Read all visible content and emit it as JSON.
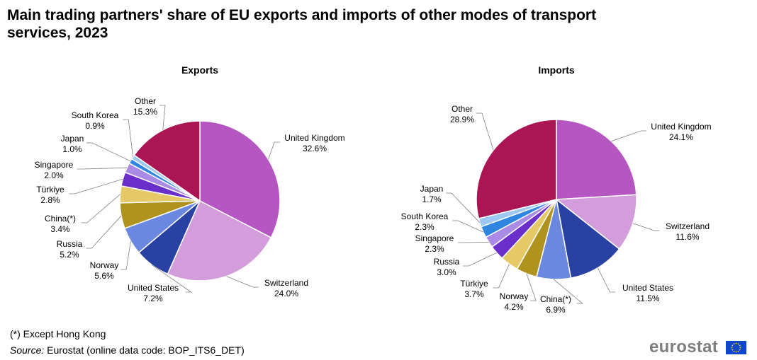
{
  "title": "Main trading partners' share of EU exports and imports of other modes of transport services, 2023",
  "footnote": "(*) Except Hong Kong",
  "source": {
    "label": "Source:",
    "text": "Eurostat (online data code: BOP_ITS6_DET)"
  },
  "logo": {
    "text": "eurostat",
    "flag_icon": "eu-flag-icon"
  },
  "chart_data": [
    {
      "type": "pie",
      "title": "Exports",
      "slices": [
        {
          "name": "United Kingdom",
          "value": 32.6,
          "label": "32.6%",
          "color": "#b656c2"
        },
        {
          "name": "Switzerland",
          "value": 24.0,
          "label": "24.0%",
          "color": "#d39cda"
        },
        {
          "name": "United States",
          "value": 7.2,
          "label": "7.2%",
          "color": "#2841a3"
        },
        {
          "name": "Norway",
          "value": 5.6,
          "label": "5.6%",
          "color": "#6b88e0"
        },
        {
          "name": "Russia",
          "value": 5.2,
          "label": "5.2%",
          "color": "#b0921e"
        },
        {
          "name": "China(*)",
          "value": 3.4,
          "label": "3.4%",
          "color": "#e6c967"
        },
        {
          "name": "Türkiye",
          "value": 2.8,
          "label": "2.8%",
          "color": "#6a2fca"
        },
        {
          "name": "Singapore",
          "value": 2.0,
          "label": "2.0%",
          "color": "#a98be6"
        },
        {
          "name": "Japan",
          "value": 1.0,
          "label": "1.0%",
          "color": "#2f86e0"
        },
        {
          "name": "South Korea",
          "value": 0.9,
          "label": "0.9%",
          "color": "#9cc8f2"
        },
        {
          "name": "Other",
          "value": 15.3,
          "label": "15.3%",
          "color": "#ab1553"
        }
      ]
    },
    {
      "type": "pie",
      "title": "Imports",
      "slices": [
        {
          "name": "United Kingdom",
          "value": 24.1,
          "label": "24.1%",
          "color": "#b656c2"
        },
        {
          "name": "Switzerland",
          "value": 11.6,
          "label": "11.6%",
          "color": "#d39cda"
        },
        {
          "name": "United States",
          "value": 11.5,
          "label": "11.5%",
          "color": "#2841a3"
        },
        {
          "name": "China(*)",
          "value": 6.9,
          "label": "6.9%",
          "color": "#6b88e0"
        },
        {
          "name": "Norway",
          "value": 4.2,
          "label": "4.2%",
          "color": "#b0921e"
        },
        {
          "name": "Türkiye",
          "value": 3.7,
          "label": "3.7%",
          "color": "#e6c967"
        },
        {
          "name": "Russia",
          "value": 3.0,
          "label": "3.0%",
          "color": "#6a2fca"
        },
        {
          "name": "Singapore",
          "value": 2.3,
          "label": "2.3%",
          "color": "#a98be6"
        },
        {
          "name": "South Korea",
          "value": 2.3,
          "label": "2.3%",
          "color": "#2f86e0"
        },
        {
          "name": "Japan",
          "value": 1.7,
          "label": "1.7%",
          "color": "#9cc8f2"
        },
        {
          "name": "Other",
          "value": 28.9,
          "label": "28.9%",
          "color": "#ab1553"
        }
      ]
    }
  ]
}
